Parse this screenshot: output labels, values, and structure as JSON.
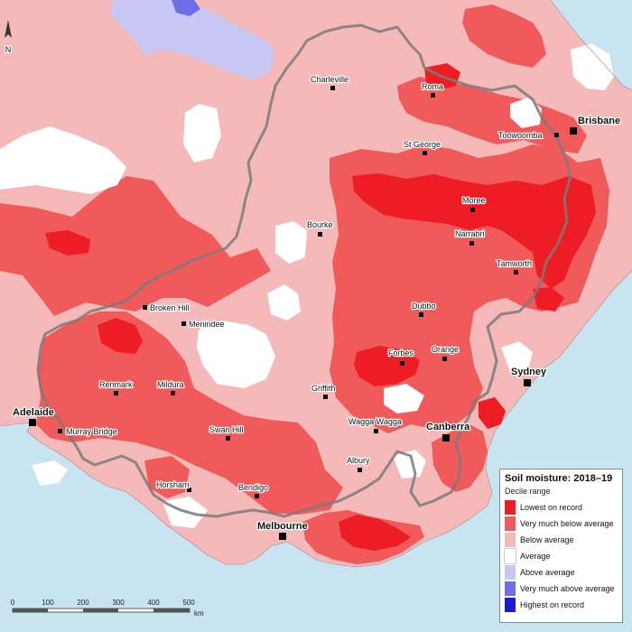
{
  "legend": {
    "title": "Soil moisture: 2018–19",
    "subtitle": "Decile range",
    "items": [
      {
        "label": "Lowest on record",
        "color": "#ee1c24"
      },
      {
        "label": "Very much below average",
        "color": "#f05a5a"
      },
      {
        "label": "Below average",
        "color": "#f6b9b9"
      },
      {
        "label": "Average",
        "color": "#ffffff"
      },
      {
        "label": "Above average",
        "color": "#c8c8f5"
      },
      {
        "label": "Very much above average",
        "color": "#6e6ee8"
      },
      {
        "label": "Highest on record",
        "color": "#1a1ad8"
      }
    ]
  },
  "scale": {
    "ticks": [
      "0",
      "100",
      "200",
      "300",
      "400",
      "500"
    ],
    "unit": "km"
  },
  "north": {
    "label": "N"
  },
  "colors": {
    "ocean": "#c9e4f1",
    "border": "#7a7a7a"
  },
  "cities": [
    {
      "name": "Charleville",
      "major": false
    },
    {
      "name": "Roma",
      "major": false
    },
    {
      "name": "Brisbane",
      "major": true
    },
    {
      "name": "Toowoomba",
      "major": false
    },
    {
      "name": "St George",
      "major": false
    },
    {
      "name": "Moree",
      "major": false
    },
    {
      "name": "Bourke",
      "major": false
    },
    {
      "name": "Narrabri",
      "major": false
    },
    {
      "name": "Tamworth",
      "major": false
    },
    {
      "name": "Broken Hill",
      "major": false
    },
    {
      "name": "Menindee",
      "major": false
    },
    {
      "name": "Dubbo",
      "major": false
    },
    {
      "name": "Orange",
      "major": false
    },
    {
      "name": "Forbes",
      "major": false
    },
    {
      "name": "Sydney",
      "major": true
    },
    {
      "name": "Renmark",
      "major": false
    },
    {
      "name": "Mildura",
      "major": false
    },
    {
      "name": "Griffith",
      "major": false
    },
    {
      "name": "Adelaide",
      "major": true
    },
    {
      "name": "Murray Bridge",
      "major": false
    },
    {
      "name": "Swan Hill",
      "major": false
    },
    {
      "name": "Wagga Wagga",
      "major": false
    },
    {
      "name": "Canberra",
      "major": true
    },
    {
      "name": "Albury",
      "major": false
    },
    {
      "name": "Horsham",
      "major": false
    },
    {
      "name": "Bendigo",
      "major": false
    },
    {
      "name": "Melbourne",
      "major": true
    }
  ]
}
